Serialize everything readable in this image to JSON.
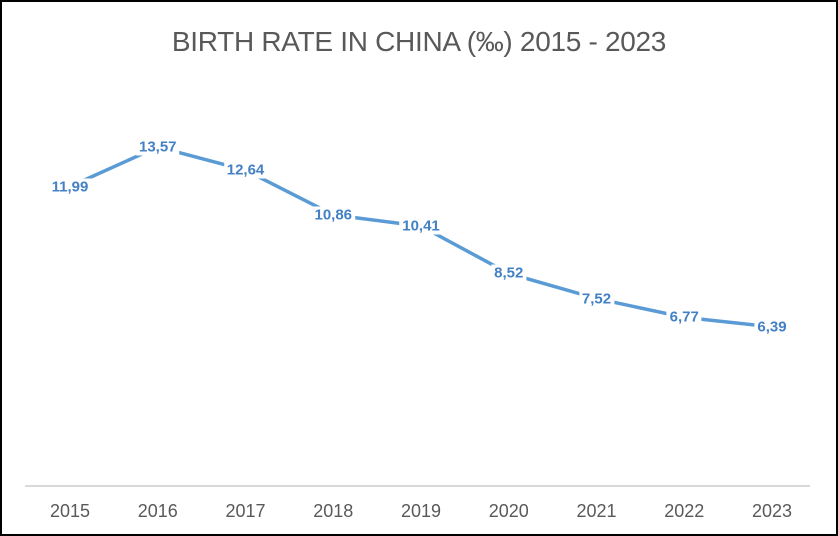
{
  "frame": {
    "background": "#ffffff",
    "border_color": "#000000"
  },
  "chart_data": {
    "type": "line",
    "title": "BIRTH RATE IN CHINA (‰) 2015 - 2023",
    "categories": [
      "2015",
      "2016",
      "2017",
      "2018",
      "2019",
      "2020",
      "2021",
      "2022",
      "2023"
    ],
    "series": [
      {
        "values": [
          11.99,
          13.57,
          12.64,
          10.86,
          10.41,
          8.52,
          7.52,
          6.77,
          6.39
        ],
        "point_labels": [
          "11,99",
          "13,57",
          "12,64",
          "10,86",
          "10,41",
          "8,52",
          "7,52",
          "6,77",
          "6,39"
        ]
      }
    ],
    "xlabel": "",
    "ylabel": "",
    "ylim": [
      0,
      16
    ],
    "decimal_separator": ",",
    "y_axis_visible": false,
    "gridlines": false,
    "legend": false,
    "colors": {
      "line": "#5B9BD5",
      "point_label": "#4380C4",
      "axis_line": "#D9D9D9",
      "tick_label": "#595959",
      "title": "#595959"
    }
  }
}
